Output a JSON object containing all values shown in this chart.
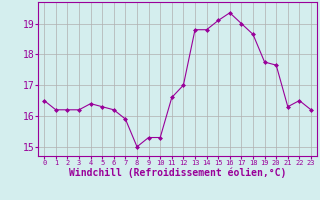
{
  "x": [
    0,
    1,
    2,
    3,
    4,
    5,
    6,
    7,
    8,
    9,
    10,
    11,
    12,
    13,
    14,
    15,
    16,
    17,
    18,
    19,
    20,
    21,
    22,
    23
  ],
  "y": [
    16.5,
    16.2,
    16.2,
    16.2,
    16.4,
    16.3,
    16.2,
    15.9,
    15.0,
    15.3,
    15.3,
    16.6,
    17.0,
    18.8,
    18.8,
    19.1,
    19.35,
    19.0,
    18.65,
    17.75,
    17.65,
    16.3,
    16.5,
    16.2
  ],
  "line_color": "#990099",
  "marker": "D",
  "marker_size": 2.0,
  "bg_color": "#d4eeee",
  "grid_color": "#b0b0b0",
  "xlabel": "Windchill (Refroidissement éolien,°C)",
  "ylabel": "",
  "ylim": [
    14.7,
    19.7
  ],
  "yticks": [
    15,
    16,
    17,
    18,
    19
  ],
  "xticks": [
    0,
    1,
    2,
    3,
    4,
    5,
    6,
    7,
    8,
    9,
    10,
    11,
    12,
    13,
    14,
    15,
    16,
    17,
    18,
    19,
    20,
    21,
    22,
    23
  ],
  "xtick_labels": [
    "0",
    "1",
    "2",
    "3",
    "4",
    "5",
    "6",
    "7",
    "8",
    "9",
    "10",
    "11",
    "12",
    "13",
    "14",
    "15",
    "16",
    "17",
    "18",
    "19",
    "20",
    "21",
    "22",
    "23"
  ],
  "axis_color": "#990099",
  "tick_color": "#990099",
  "ytick_fontsize": 7,
  "xtick_fontsize": 5,
  "xlabel_fontsize": 7
}
